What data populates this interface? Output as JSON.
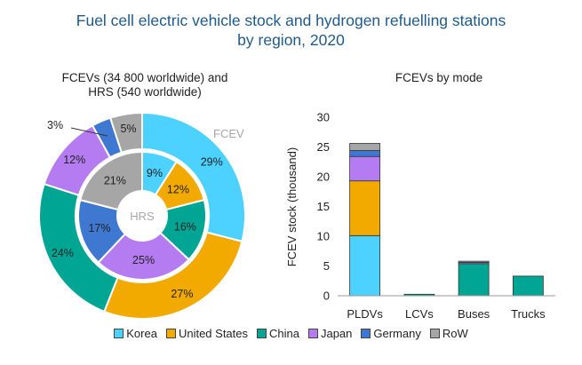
{
  "title_line1": "Fuel cell electric vehicle stock and hydrogen refuelling stations",
  "title_line2": "by region, 2020",
  "chart_data": [
    {
      "type": "pie",
      "subtitle_line1": "FCEVs (34 800 worldwide) and",
      "subtitle_line2": "HRS (540 worldwide)",
      "outer_label": "FCEV",
      "inner_label": "HRS",
      "categories": [
        "Korea",
        "United States",
        "China",
        "Japan",
        "Germany",
        "RoW"
      ],
      "colors": [
        "#4dd2ff",
        "#f2a900",
        "#00a693",
        "#b57cf2",
        "#3f78d0",
        "#a6a6a6"
      ],
      "outer_values": [
        29,
        27,
        24,
        12,
        3,
        5
      ],
      "outer_labels": [
        "29%",
        "27%",
        "24%",
        "12%",
        "3%",
        "5%"
      ],
      "inner_values": [
        9,
        12,
        16,
        25,
        17,
        21
      ],
      "inner_labels": [
        "9%",
        "12%",
        "16%",
        "25%",
        "17%",
        "21%"
      ]
    },
    {
      "type": "bar",
      "title": "FCEVs by mode",
      "categories": [
        "PLDVs",
        "LCVs",
        "Buses",
        "Trucks"
      ],
      "ylabel": "FCEV stock (thousand)",
      "ylim": [
        0,
        30
      ],
      "yticks": [
        "0",
        "5",
        "10",
        "15",
        "20",
        "25",
        "30"
      ],
      "series": [
        {
          "name": "Korea",
          "values": [
            10.1,
            0,
            0,
            0
          ]
        },
        {
          "name": "United States",
          "values": [
            9.2,
            0,
            0,
            0
          ]
        },
        {
          "name": "China",
          "values": [
            0,
            0.25,
            5.4,
            3.3
          ]
        },
        {
          "name": "Japan",
          "values": [
            4.1,
            0,
            0.2,
            0
          ]
        },
        {
          "name": "Germany",
          "values": [
            1.0,
            0,
            0,
            0
          ]
        },
        {
          "name": "RoW",
          "values": [
            1.2,
            0,
            0.2,
            0
          ]
        }
      ]
    }
  ]
}
